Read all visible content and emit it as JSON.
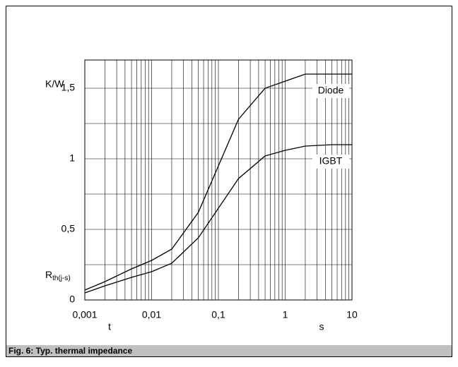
{
  "chart_data": {
    "type": "line",
    "caption": "Fig. 6: Typ. thermal impedance",
    "ylabel": "R",
    "ylabel_sub": "th(j-s)",
    "yunit": "K/W",
    "xlabel": "t",
    "xunit": "s",
    "x": [
      0.001,
      0.002,
      0.005,
      0.01,
      0.02,
      0.05,
      0.1,
      0.2,
      0.5,
      1,
      2,
      5,
      10
    ],
    "series": [
      {
        "name": "Diode",
        "color": "#000000",
        "values": [
          0.07,
          0.13,
          0.22,
          0.28,
          0.36,
          0.62,
          0.95,
          1.28,
          1.5,
          1.55,
          1.6,
          1.6,
          1.6
        ]
      },
      {
        "name": "IGBT",
        "color": "#000000",
        "values": [
          0.05,
          0.1,
          0.16,
          0.2,
          0.26,
          0.44,
          0.65,
          0.86,
          1.02,
          1.06,
          1.09,
          1.1,
          1.1
        ]
      }
    ],
    "xlog": true,
    "x_minor_grid": true,
    "xlim": [
      0.001,
      10
    ],
    "xticks": [
      {
        "value": 0.001,
        "label": "0,001"
      },
      {
        "value": 0.01,
        "label": "0,01"
      },
      {
        "value": 0.1,
        "label": "0,1"
      },
      1,
      10
    ],
    "ylim": [
      0,
      1.7
    ],
    "yticks": [
      0,
      {
        "value": 0.5,
        "label": "0,5"
      },
      1,
      {
        "value": 1.5,
        "label": "1,5"
      }
    ],
    "y_minor_ticks": [
      0.25,
      0.75,
      1.25
    ],
    "grid": true
  }
}
